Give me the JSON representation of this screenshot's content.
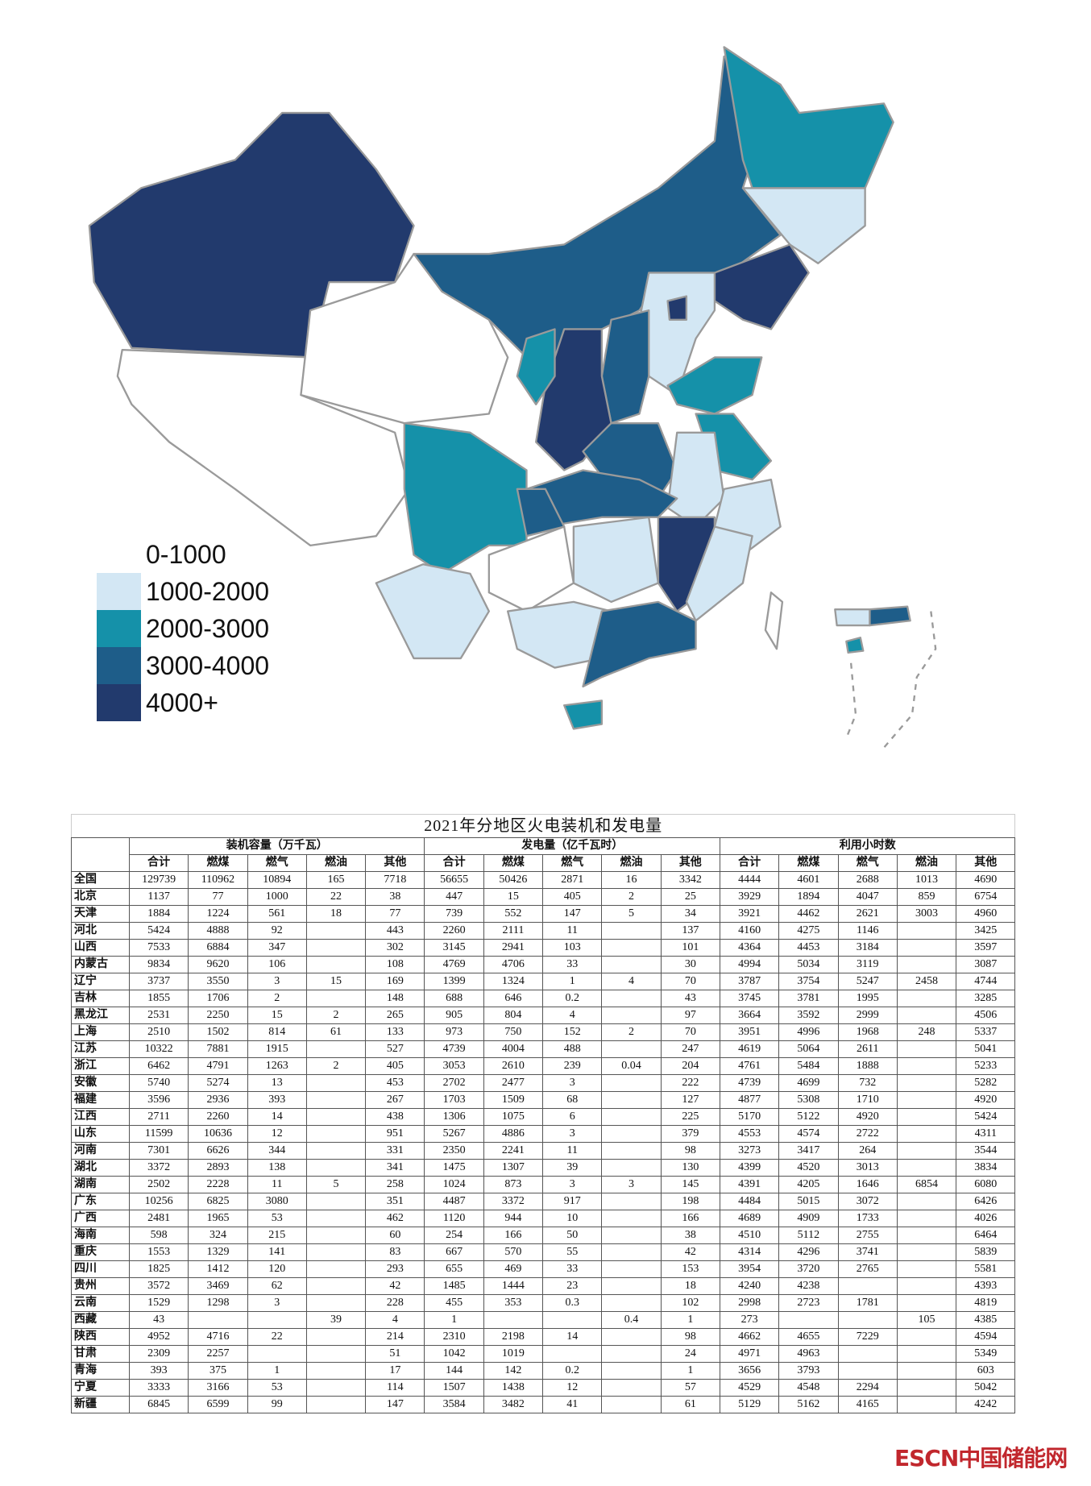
{
  "legend": [
    {
      "label": "0-1000",
      "color": "#ffffff"
    },
    {
      "label": "1000-2000",
      "color": "#d3e7f4"
    },
    {
      "label": "2000-3000",
      "color": "#1591a9"
    },
    {
      "label": "3000-4000",
      "color": "#1e5d89"
    },
    {
      "label": "4000+",
      "color": "#223a6d"
    }
  ],
  "table": {
    "title": "2021年分地区火电装机和发电量",
    "groups": [
      "装机容量（万千瓦）",
      "发电量（亿千瓦时）",
      "利用小时数"
    ],
    "subheaders": [
      "合计",
      "燃煤",
      "燃气",
      "燃油",
      "其他"
    ],
    "rows": [
      [
        "全国",
        129739,
        110962,
        10894,
        165,
        7718,
        56655,
        50426,
        2871,
        16,
        3342,
        4444,
        4601,
        2688,
        1013,
        4690
      ],
      [
        "北京",
        1137,
        77,
        1000,
        22,
        38,
        447,
        15,
        405,
        2,
        25,
        3929,
        1894,
        4047,
        859,
        6754
      ],
      [
        "天津",
        1884,
        1224,
        561,
        18,
        77,
        739,
        552,
        147,
        5,
        34,
        3921,
        4462,
        2621,
        3003,
        4960
      ],
      [
        "河北",
        5424,
        4888,
        92,
        null,
        443,
        2260,
        2111,
        11,
        null,
        137,
        4160,
        4275,
        1146,
        null,
        3425
      ],
      [
        "山西",
        7533,
        6884,
        347,
        null,
        302,
        3145,
        2941,
        103,
        null,
        101,
        4364,
        4453,
        3184,
        null,
        3597
      ],
      [
        "内蒙古",
        9834,
        9620,
        106,
        null,
        108,
        4769,
        4706,
        33,
        null,
        30,
        4994,
        5034,
        3119,
        null,
        3087
      ],
      [
        "辽宁",
        3737,
        3550,
        3,
        15,
        169,
        1399,
        1324,
        1,
        4,
        70,
        3787,
        3754,
        5247,
        2458,
        4744
      ],
      [
        "吉林",
        1855,
        1706,
        2,
        null,
        148,
        688,
        646,
        0.2,
        null,
        43,
        3745,
        3781,
        1995,
        null,
        3285
      ],
      [
        "黑龙江",
        2531,
        2250,
        15,
        2,
        265,
        905,
        804,
        4,
        null,
        97,
        3664,
        3592,
        2999,
        null,
        4506
      ],
      [
        "上海",
        2510,
        1502,
        814,
        61,
        133,
        973,
        750,
        152,
        2,
        70,
        3951,
        4996,
        1968,
        248,
        5337
      ],
      [
        "江苏",
        10322,
        7881,
        1915,
        null,
        527,
        4739,
        4004,
        488,
        null,
        247,
        4619,
        5064,
        2611,
        null,
        5041
      ],
      [
        "浙江",
        6462,
        4791,
        1263,
        2,
        405,
        3053,
        2610,
        239,
        0.04,
        204,
        4761,
        5484,
        1888,
        null,
        5233
      ],
      [
        "安徽",
        5740,
        5274,
        13,
        null,
        453,
        2702,
        2477,
        3,
        null,
        222,
        4739,
        4699,
        732,
        null,
        5282
      ],
      [
        "福建",
        3596,
        2936,
        393,
        null,
        267,
        1703,
        1509,
        68,
        null,
        127,
        4877,
        5308,
        1710,
        null,
        4920
      ],
      [
        "江西",
        2711,
        2260,
        14,
        null,
        438,
        1306,
        1075,
        6,
        null,
        225,
        5170,
        5122,
        4920,
        null,
        5424
      ],
      [
        "山东",
        11599,
        10636,
        12,
        null,
        951,
        5267,
        4886,
        3,
        null,
        379,
        4553,
        4574,
        2722,
        null,
        4311
      ],
      [
        "河南",
        7301,
        6626,
        344,
        null,
        331,
        2350,
        2241,
        11,
        null,
        98,
        3273,
        3417,
        264,
        null,
        3544
      ],
      [
        "湖北",
        3372,
        2893,
        138,
        null,
        341,
        1475,
        1307,
        39,
        null,
        130,
        4399,
        4520,
        3013,
        null,
        3834
      ],
      [
        "湖南",
        2502,
        2228,
        11,
        5,
        258,
        1024,
        873,
        3,
        3,
        145,
        4391,
        4205,
        1646,
        6854,
        6080
      ],
      [
        "广东",
        10256,
        6825,
        3080,
        null,
        351,
        4487,
        3372,
        917,
        null,
        198,
        4484,
        5015,
        3072,
        null,
        6426
      ],
      [
        "广西",
        2481,
        1965,
        53,
        null,
        462,
        1120,
        944,
        10,
        null,
        166,
        4689,
        4909,
        1733,
        null,
        4026
      ],
      [
        "海南",
        598,
        324,
        215,
        null,
        60,
        254,
        166,
        50,
        null,
        38,
        4510,
        5112,
        2755,
        null,
        6464
      ],
      [
        "重庆",
        1553,
        1329,
        141,
        null,
        83,
        667,
        570,
        55,
        null,
        42,
        4314,
        4296,
        3741,
        null,
        5839
      ],
      [
        "四川",
        1825,
        1412,
        120,
        null,
        293,
        655,
        469,
        33,
        null,
        153,
        3954,
        3720,
        2765,
        null,
        5581
      ],
      [
        "贵州",
        3572,
        3469,
        62,
        null,
        42,
        1485,
        1444,
        23,
        null,
        18,
        4240,
        4238,
        null,
        null,
        4393
      ],
      [
        "云南",
        1529,
        1298,
        3,
        null,
        228,
        455,
        353,
        0.3,
        null,
        102,
        2998,
        2723,
        1781,
        null,
        4819
      ],
      [
        "西藏",
        43,
        null,
        null,
        39,
        4,
        1,
        null,
        null,
        0.4,
        1,
        273,
        null,
        null,
        105,
        4385
      ],
      [
        "陕西",
        4952,
        4716,
        22,
        null,
        214,
        2310,
        2198,
        14,
        null,
        98,
        4662,
        4655,
        7229,
        null,
        4594
      ],
      [
        "甘肃",
        2309,
        2257,
        null,
        null,
        51,
        1042,
        1019,
        null,
        null,
        24,
        4971,
        4963,
        null,
        null,
        5349
      ],
      [
        "青海",
        393,
        375,
        1,
        null,
        17,
        144,
        142,
        0.2,
        null,
        1,
        3656,
        3793,
        null,
        null,
        603
      ],
      [
        "宁夏",
        3333,
        3166,
        53,
        null,
        114,
        1507,
        1438,
        12,
        null,
        57,
        4529,
        4548,
        2294,
        null,
        5042
      ],
      [
        "新疆",
        6845,
        6599,
        99,
        null,
        147,
        3584,
        3482,
        41,
        null,
        61,
        5129,
        5162,
        4165,
        null,
        4242
      ]
    ]
  },
  "watermark": "ESCN中国储能网"
}
